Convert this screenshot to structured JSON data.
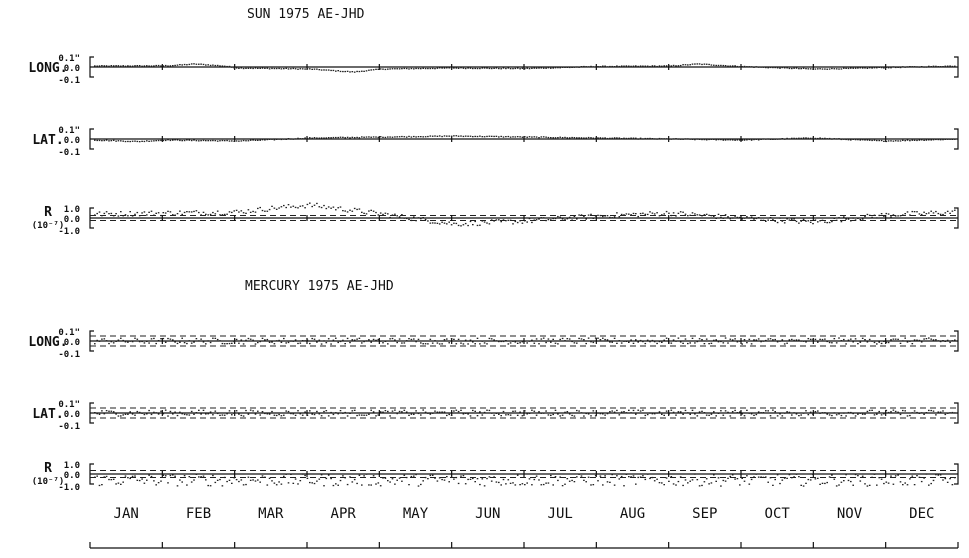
{
  "charts": [
    {
      "title": "SUN        1975  AE-JHD",
      "panels": [
        {
          "label": "LONG.",
          "sublabel": "",
          "ticks": [
            "0.1\"",
            "0.0",
            "-0.1"
          ],
          "band": null,
          "noise": 0.004,
          "trend": [
            [
              0,
              0.01
            ],
            [
              1,
              0.012
            ],
            [
              1.4,
              0.03
            ],
            [
              1.8,
              0.01
            ],
            [
              2,
              -0.01
            ],
            [
              3,
              -0.02
            ],
            [
              3.6,
              -0.05
            ],
            [
              4,
              -0.02
            ],
            [
              5,
              -0.01
            ],
            [
              6,
              -0.015
            ],
            [
              7,
              0.005
            ],
            [
              8,
              0.01
            ],
            [
              8.4,
              0.03
            ],
            [
              9,
              0.005
            ],
            [
              10,
              -0.02
            ],
            [
              10.5,
              -0.015
            ],
            [
              11,
              -0.005
            ],
            [
              12,
              0.01
            ]
          ]
        },
        {
          "label": "LAT.",
          "sublabel": "",
          "ticks": [
            "0.1\"",
            "0.0",
            "-0.1"
          ],
          "band": null,
          "noise": 0.004,
          "trend": [
            [
              0,
              -0.01
            ],
            [
              0.6,
              -0.025
            ],
            [
              1,
              -0.01
            ],
            [
              2,
              -0.02
            ],
            [
              3,
              0.01
            ],
            [
              4,
              0.02
            ],
            [
              5,
              0.03
            ],
            [
              6,
              0.02
            ],
            [
              7,
              0.01
            ],
            [
              8,
              0.0
            ],
            [
              9,
              -0.01
            ],
            [
              10,
              0.01
            ],
            [
              11,
              -0.02
            ],
            [
              12,
              0.0
            ]
          ]
        },
        {
          "label": "R",
          "sublabel": "(10⁻⁷)",
          "ticks": [
            "1.0",
            "0.0",
            "-1.0"
          ],
          "band": 0.25,
          "noise": 0.25,
          "trend": [
            [
              0,
              0.4
            ],
            [
              1,
              0.5
            ],
            [
              2,
              0.6
            ],
            [
              2.5,
              1.0
            ],
            [
              3,
              1.3
            ],
            [
              4,
              0.4
            ],
            [
              5,
              -0.6
            ],
            [
              6,
              -0.3
            ],
            [
              7,
              0.2
            ],
            [
              8,
              0.5
            ],
            [
              9,
              0.0
            ],
            [
              10,
              -0.4
            ],
            [
              11,
              0.3
            ],
            [
              12,
              0.6
            ]
          ]
        }
      ]
    },
    {
      "title": "MERCURY  1975  AE-JHD",
      "panels": [
        {
          "label": "LONG.",
          "sublabel": "",
          "ticks": [
            "0.1\"",
            "0.0",
            "-0.1"
          ],
          "band": 0.05,
          "noise": 0.03,
          "trend": [
            [
              0,
              0
            ],
            [
              12,
              0
            ]
          ]
        },
        {
          "label": "LAT.",
          "sublabel": "",
          "ticks": [
            "0.1\"",
            "0.0",
            "-0.1"
          ],
          "band": 0.05,
          "noise": 0.03,
          "trend": [
            [
              0,
              0
            ],
            [
              12,
              0
            ]
          ]
        },
        {
          "label": "R",
          "sublabel": "(10⁻⁷)",
          "ticks": [
            "1.0",
            "0.0",
            "-1.0"
          ],
          "band": 0.35,
          "noise": 0.6,
          "trend": [
            [
              0,
              -0.6
            ],
            [
              12,
              -0.6
            ]
          ]
        }
      ]
    }
  ],
  "chart_data": [
    {
      "type": "scatter",
      "title": "SUN        1975  AE-JHD",
      "categories": [
        "JAN",
        "FEB",
        "MAR",
        "APR",
        "MAY",
        "JUN",
        "JUL",
        "AUG",
        "SEP",
        "OCT",
        "NOV",
        "DEC"
      ],
      "series": [
        {
          "name": "LONG.",
          "ylim": [
            -0.1,
            0.1
          ]
        },
        {
          "name": "LAT.",
          "ylim": [
            -0.1,
            0.1
          ]
        },
        {
          "name": "R",
          "ylim": [
            -1.0,
            1.0
          ]
        }
      ]
    },
    {
      "type": "scatter",
      "title": "MERCURY  1975  AE-JHD",
      "categories": [
        "JAN",
        "FEB",
        "MAR",
        "APR",
        "MAY",
        "JUN",
        "JUL",
        "AUG",
        "SEP",
        "OCT",
        "NOV",
        "DEC"
      ],
      "series": [
        {
          "name": "LONG.",
          "ylim": [
            -0.1,
            0.1
          ]
        },
        {
          "name": "LAT.",
          "ylim": [
            -0.1,
            0.1
          ]
        },
        {
          "name": "R",
          "ylim": [
            -1.0,
            1.0
          ]
        }
      ]
    }
  ],
  "months": [
    "JAN",
    "FEB",
    "MAR",
    "APR",
    "MAY",
    "JUN",
    "JUL",
    "AUG",
    "SEP",
    "OCT",
    "NOV",
    "DEC"
  ]
}
